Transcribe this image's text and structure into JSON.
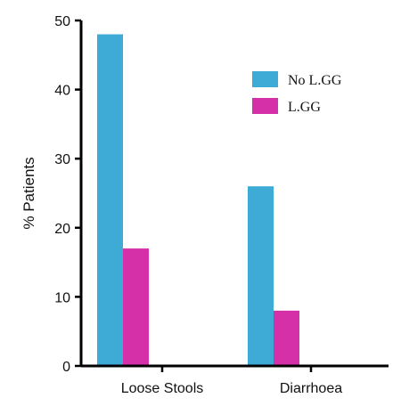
{
  "chart_data": {
    "type": "bar",
    "categories": [
      "Loose Stools",
      "Diarrhoea"
    ],
    "series": [
      {
        "name": "No L.GG",
        "values": [
          48,
          26
        ],
        "color": "#3eaad6"
      },
      {
        "name": "L.GG",
        "values": [
          17,
          8
        ],
        "color": "#d630a8"
      }
    ],
    "title": "",
    "xlabel": "",
    "ylabel": "% Patients",
    "ylim": [
      0,
      50
    ],
    "yticks": [
      0,
      10,
      20,
      30,
      40,
      50
    ],
    "grid": false,
    "legend_position": "top-right"
  }
}
